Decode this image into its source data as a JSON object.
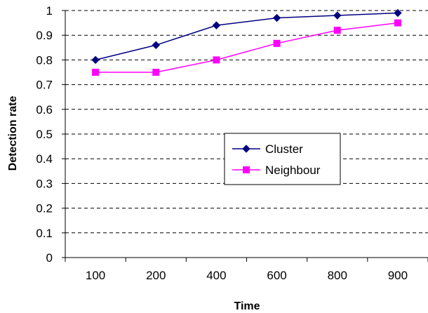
{
  "chart_data": {
    "type": "line",
    "xlabel": "Time",
    "ylabel": "Detection rate",
    "categories": [
      "100",
      "200",
      "400",
      "600",
      "800",
      "900"
    ],
    "ylim": [
      0,
      1
    ],
    "yticks": [
      "0",
      "0.1",
      "0.2",
      "0.3",
      "0.4",
      "0.5",
      "0.6",
      "0.7",
      "0.8",
      "0.9",
      "1"
    ],
    "grid": "horizontal dashed",
    "legend_position": "center-right",
    "series": [
      {
        "name": "Cluster",
        "color": "#000080",
        "marker": "diamond",
        "values": [
          0.8,
          0.86,
          0.94,
          0.97,
          0.98,
          0.99
        ]
      },
      {
        "name": "Neighbour",
        "color": "#FF00FF",
        "marker": "square",
        "values": [
          0.75,
          0.75,
          0.8,
          0.867,
          0.92,
          0.95
        ]
      }
    ]
  }
}
